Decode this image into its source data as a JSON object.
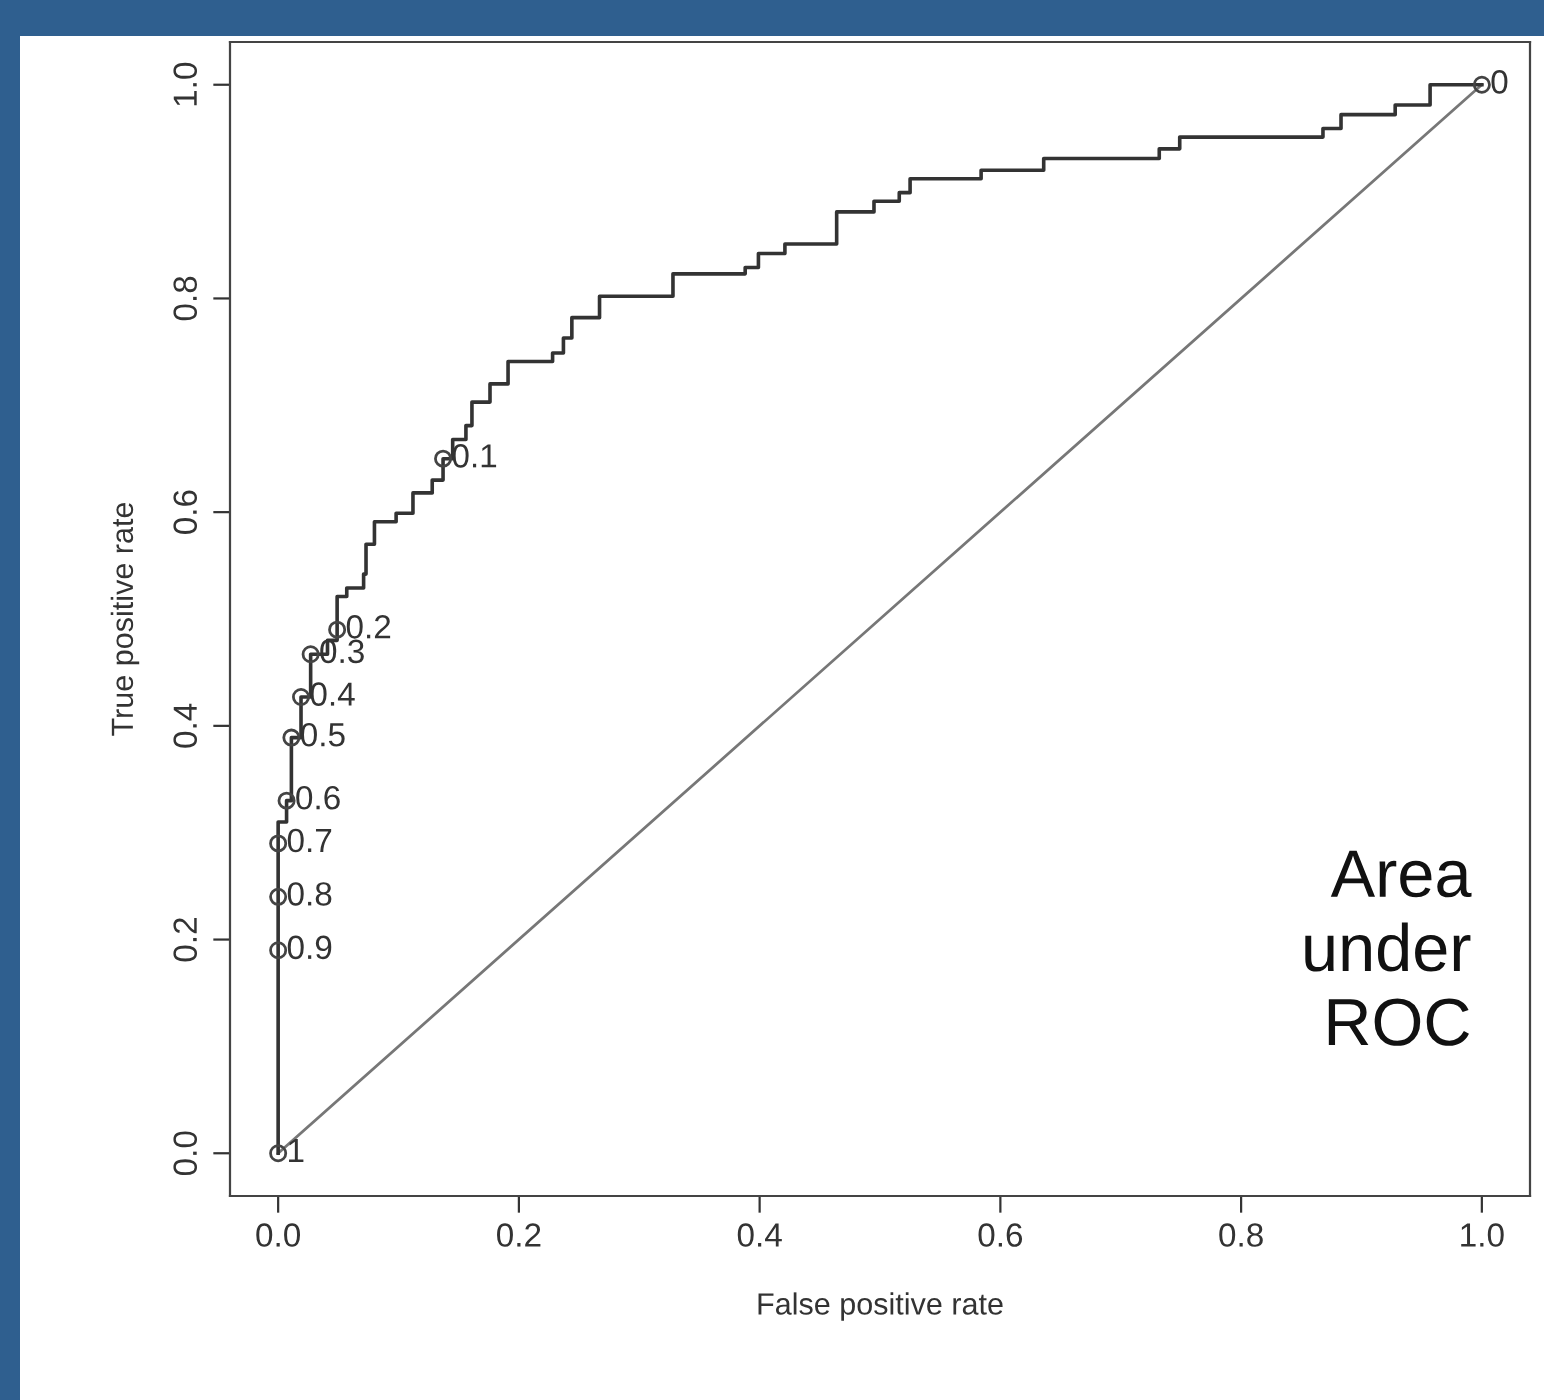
{
  "chart_data": {
    "type": "step",
    "xlabel": "False positive rate",
    "ylabel": "True positive rate",
    "xlim": [
      -0.04,
      1.04
    ],
    "ylim": [
      -0.04,
      1.04
    ],
    "xticks": [
      {
        "value": 0,
        "label": "0.0"
      },
      0.2,
      0.4,
      0.6,
      0.8,
      {
        "value": 1,
        "label": "1.0"
      }
    ],
    "yticks": [
      {
        "value": 0,
        "label": "0.0"
      },
      0.2,
      0.4,
      0.6,
      0.8,
      {
        "value": 1,
        "label": "1.0"
      }
    ],
    "series": [
      {
        "color": "#333333",
        "marker": "none",
        "x": [
          0,
          0,
          0.007,
          0.011,
          0.019,
          0.027,
          0.041,
          0.049,
          0.057,
          0.071,
          0.073,
          0.08,
          0.098,
          0.112,
          0.128,
          0.137,
          0.145,
          0.156,
          0.161,
          0.176,
          0.191,
          0.228,
          0.237,
          0.244,
          0.267,
          0.328,
          0.388,
          0.399,
          0.421,
          0.464,
          0.495,
          0.516,
          0.525,
          0.584,
          0.636,
          0.732,
          0.749,
          0.868,
          0.883,
          0.928,
          0.957,
          1.0
        ],
        "values": [
          0,
          0.31,
          0.33,
          0.389,
          0.427,
          0.467,
          0.48,
          0.521,
          0.529,
          0.542,
          0.57,
          0.591,
          0.599,
          0.618,
          0.63,
          0.65,
          0.668,
          0.681,
          0.703,
          0.72,
          0.741,
          0.749,
          0.763,
          0.782,
          0.802,
          0.823,
          0.829,
          0.842,
          0.851,
          0.881,
          0.891,
          0.899,
          0.912,
          0.92,
          0.931,
          0.94,
          0.951,
          0.959,
          0.972,
          0.981,
          1.0,
          1.0
        ]
      },
      {
        "type": "line",
        "color": "#777777",
        "marker": "none",
        "x": [
          0,
          1
        ],
        "values": [
          0,
          1
        ]
      },
      {
        "type": "scatter",
        "color": "#444444",
        "marker": "circle",
        "x": [
          0,
          0,
          0,
          0,
          0.007,
          0.011,
          0.019,
          0.027,
          0.049,
          0.137,
          1.0
        ],
        "values": [
          0,
          0.19,
          0.24,
          0.29,
          0.33,
          0.389,
          0.427,
          0.467,
          0.49,
          0.65,
          1.0
        ]
      }
    ],
    "annotations": [
      {
        "text": "1",
        "x": 0,
        "y": 0
      },
      {
        "text": "0.9",
        "x": 0,
        "y": 0.19
      },
      {
        "text": "0.8",
        "x": 0,
        "y": 0.24
      },
      {
        "text": "0.7",
        "x": 0,
        "y": 0.29
      },
      {
        "text": "0.6",
        "x": 0.007,
        "y": 0.33
      },
      {
        "text": "0.5",
        "x": 0.011,
        "y": 0.389
      },
      {
        "text": "0.4",
        "x": 0.019,
        "y": 0.427
      },
      {
        "text": "0.3",
        "x": 0.027,
        "y": 0.467
      },
      {
        "text": "0.2",
        "x": 0.049,
        "y": 0.49
      },
      {
        "text": "0.1",
        "x": 0.137,
        "y": 0.65
      },
      {
        "text": "0",
        "x": 1.0,
        "y": 1.0
      },
      "Area\nunder\nROC"
    ]
  }
}
